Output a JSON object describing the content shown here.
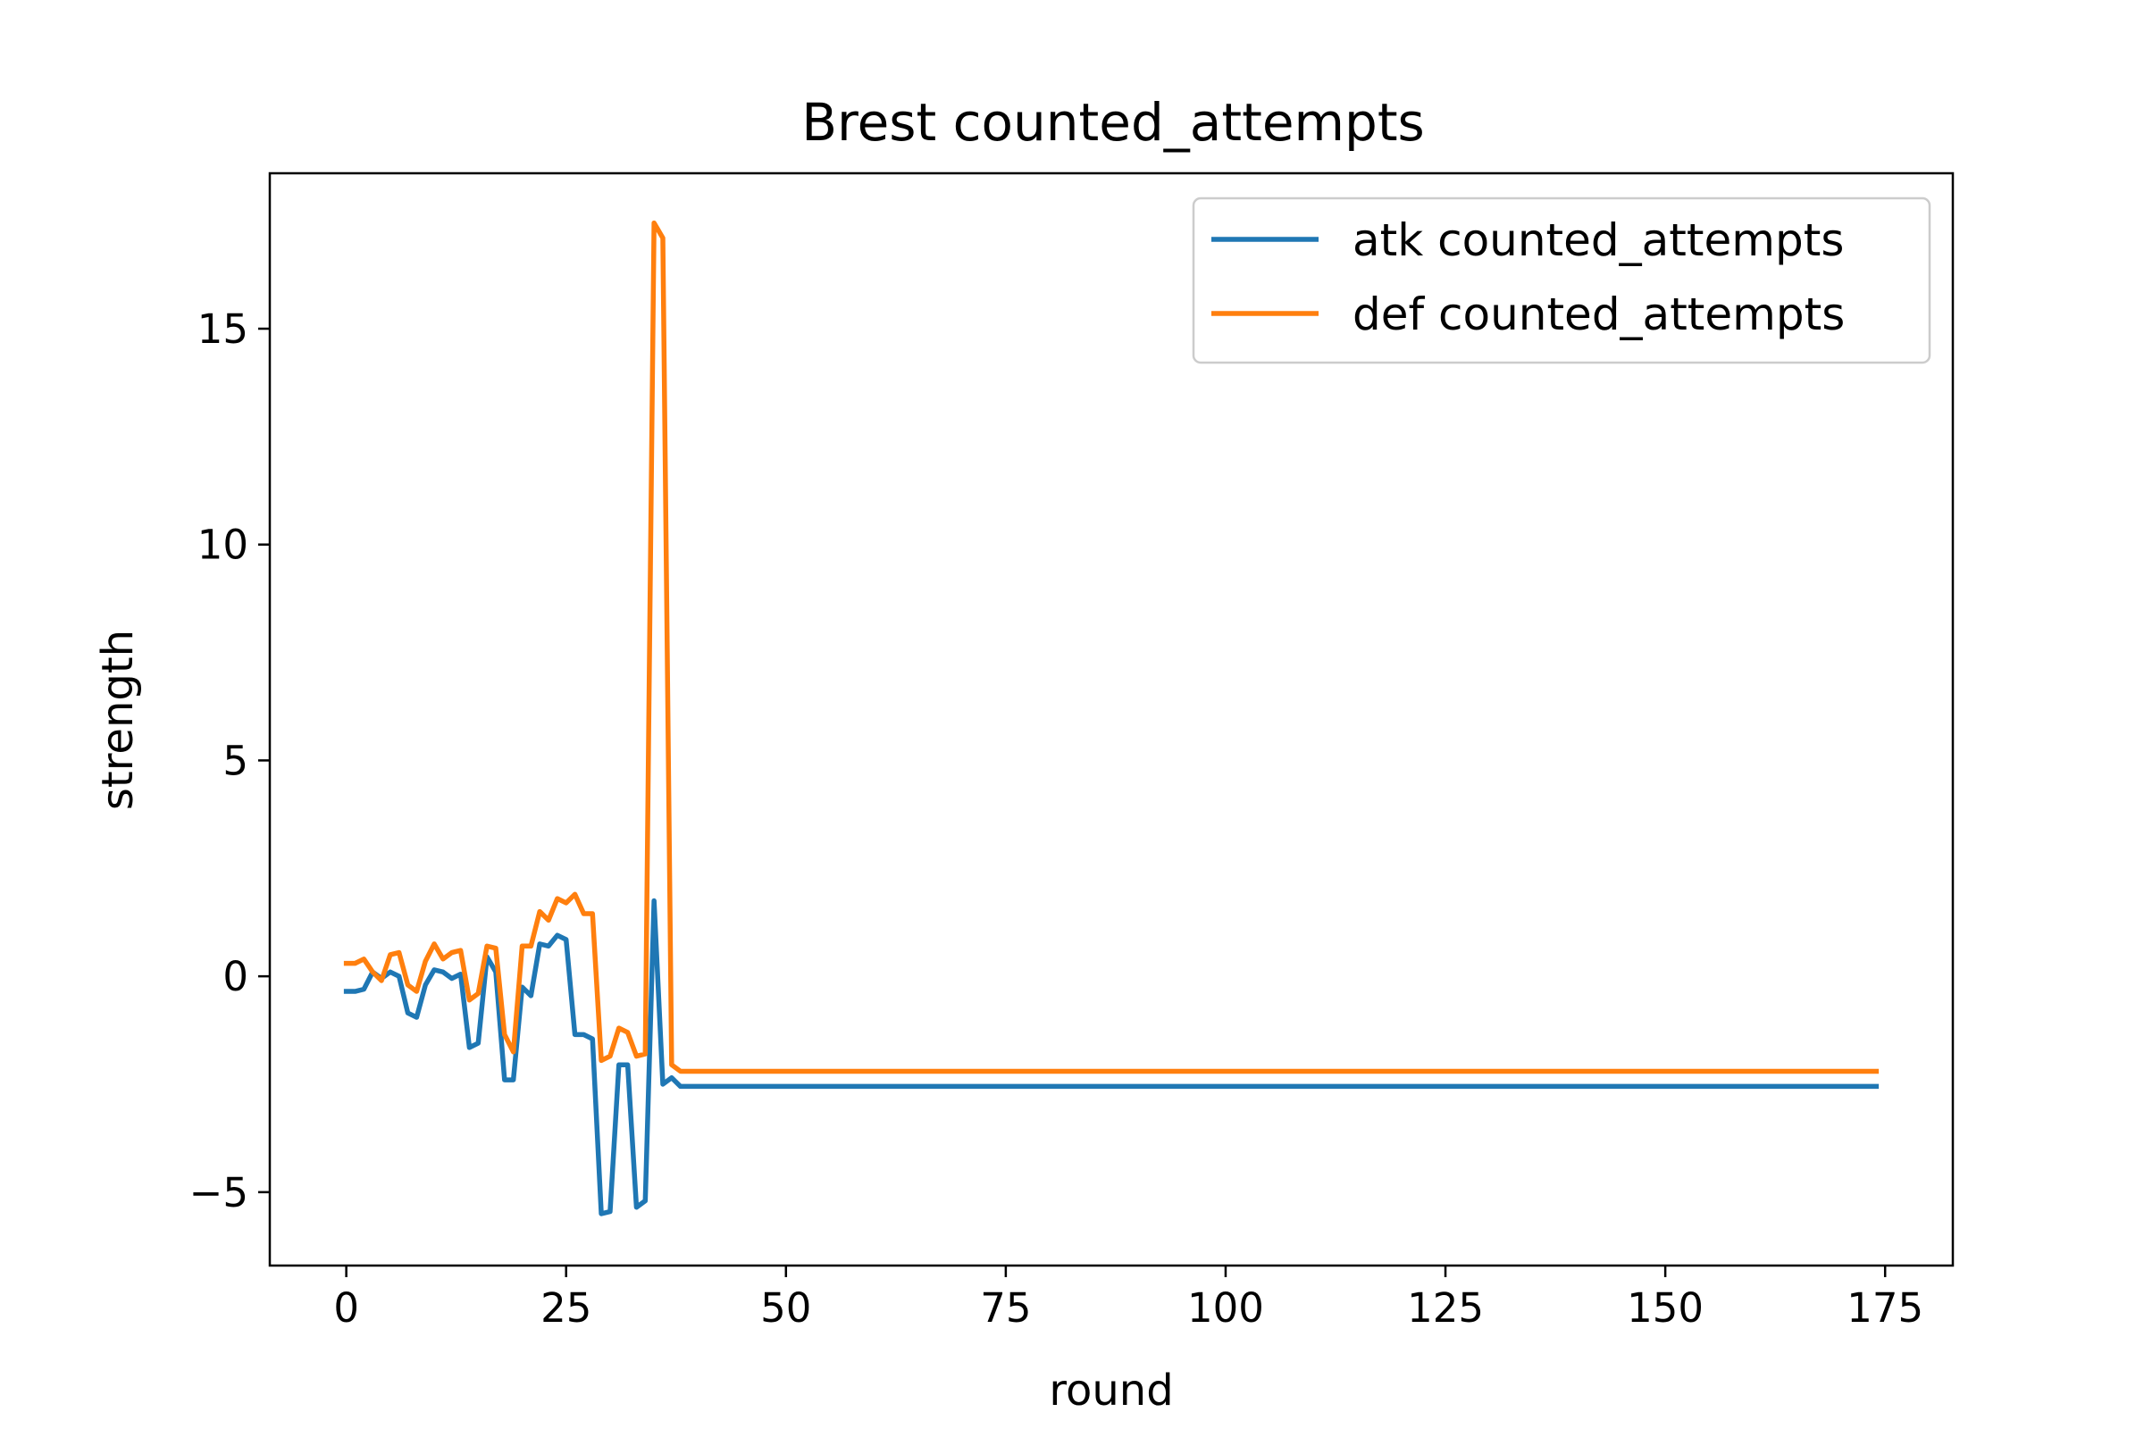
{
  "chart_data": {
    "type": "line",
    "title": "Brest counted_attempts",
    "xlabel": "round",
    "ylabel": "strength",
    "xlim": [
      -8.7,
      182.7
    ],
    "ylim": [
      -6.7,
      18.6
    ],
    "xticks": [
      0,
      25,
      50,
      75,
      100,
      125,
      150,
      175
    ],
    "yticks": [
      -5,
      0,
      5,
      10,
      15
    ],
    "xtick_labels": [
      "0",
      "25",
      "50",
      "75",
      "100",
      "125",
      "150",
      "175"
    ],
    "ytick_labels": [
      "−5",
      "0",
      "5",
      "10",
      "15"
    ],
    "grid": false,
    "legend_position": "top-right",
    "series": [
      {
        "name": "atk counted_attempts",
        "color": "#1f77b4",
        "points": [
          [
            0,
            -0.35
          ],
          [
            1,
            -0.35
          ],
          [
            2,
            -0.3
          ],
          [
            3,
            0.1
          ],
          [
            4,
            -0.05
          ],
          [
            5,
            0.1
          ],
          [
            6,
            0.0
          ],
          [
            7,
            -0.85
          ],
          [
            8,
            -0.95
          ],
          [
            9,
            -0.2
          ],
          [
            10,
            0.15
          ],
          [
            11,
            0.1
          ],
          [
            12,
            -0.05
          ],
          [
            13,
            0.05
          ],
          [
            14,
            -1.65
          ],
          [
            15,
            -1.55
          ],
          [
            16,
            0.45
          ],
          [
            17,
            0.1
          ],
          [
            18,
            -2.4
          ],
          [
            19,
            -2.4
          ],
          [
            20,
            -0.25
          ],
          [
            21,
            -0.45
          ],
          [
            22,
            0.75
          ],
          [
            23,
            0.7
          ],
          [
            24,
            0.95
          ],
          [
            25,
            0.85
          ],
          [
            26,
            -1.35
          ],
          [
            27,
            -1.35
          ],
          [
            28,
            -1.45
          ],
          [
            29,
            -5.5
          ],
          [
            30,
            -5.45
          ],
          [
            31,
            -2.05
          ],
          [
            32,
            -2.05
          ],
          [
            33,
            -5.35
          ],
          [
            34,
            -5.2
          ],
          [
            35,
            1.75
          ],
          [
            36,
            -2.5
          ],
          [
            37,
            -2.35
          ],
          [
            38,
            -2.55
          ],
          [
            174,
            -2.55
          ]
        ]
      },
      {
        "name": "def counted_attempts",
        "color": "#ff7f0e",
        "points": [
          [
            0,
            0.3
          ],
          [
            1,
            0.3
          ],
          [
            2,
            0.4
          ],
          [
            3,
            0.1
          ],
          [
            4,
            -0.1
          ],
          [
            5,
            0.5
          ],
          [
            6,
            0.55
          ],
          [
            7,
            -0.2
          ],
          [
            8,
            -0.35
          ],
          [
            9,
            0.35
          ],
          [
            10,
            0.75
          ],
          [
            11,
            0.4
          ],
          [
            12,
            0.55
          ],
          [
            13,
            0.6
          ],
          [
            14,
            -0.55
          ],
          [
            15,
            -0.4
          ],
          [
            16,
            0.7
          ],
          [
            17,
            0.65
          ],
          [
            18,
            -1.35
          ],
          [
            19,
            -1.75
          ],
          [
            20,
            0.7
          ],
          [
            21,
            0.7
          ],
          [
            22,
            1.5
          ],
          [
            23,
            1.3
          ],
          [
            24,
            1.8
          ],
          [
            25,
            1.7
          ],
          [
            26,
            1.9
          ],
          [
            27,
            1.45
          ],
          [
            28,
            1.45
          ],
          [
            29,
            -1.95
          ],
          [
            30,
            -1.85
          ],
          [
            31,
            -1.2
          ],
          [
            32,
            -1.3
          ],
          [
            33,
            -1.85
          ],
          [
            34,
            -1.8
          ],
          [
            35,
            17.45
          ],
          [
            36,
            17.1
          ],
          [
            37,
            -2.05
          ],
          [
            38,
            -2.2
          ],
          [
            174,
            -2.2
          ]
        ]
      }
    ]
  }
}
